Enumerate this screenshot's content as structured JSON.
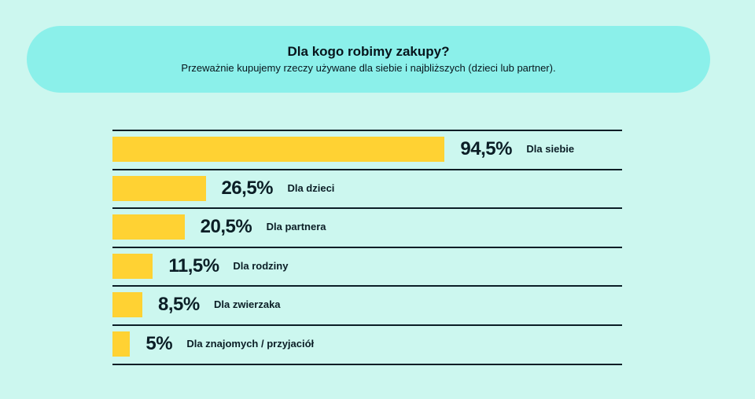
{
  "header": {
    "title": "Dla kogo robimy zakupy?",
    "subtitle": "Przeważnie kupujemy rzeczy używane dla siebie i najbliższych (dzieci lub partner)."
  },
  "colors": {
    "background": "#ccf7ef",
    "header_background": "#8bf0ea",
    "bar": "#ffd233",
    "text": "#0b1e26"
  },
  "chart_data": {
    "type": "bar",
    "orientation": "horizontal",
    "title": "Dla kogo robimy zakupy?",
    "subtitle": "Przeważnie kupujemy rzeczy używane dla siebie i najbliższych (dzieci lub partner).",
    "xlim": [
      0,
      100
    ],
    "categories": [
      "Dla siebie",
      "Dla dzieci",
      "Dla partnera",
      "Dla rodziny",
      "Dla zwierzaka",
      "Dla znajomych / przyjaciół"
    ],
    "values": [
      94.5,
      26.5,
      20.5,
      11.5,
      8.5,
      5
    ],
    "value_labels": [
      "94,5%",
      "26,5%",
      "20,5%",
      "11,5%",
      "8,5%",
      "5%"
    ],
    "grid": false,
    "legend": "none"
  }
}
